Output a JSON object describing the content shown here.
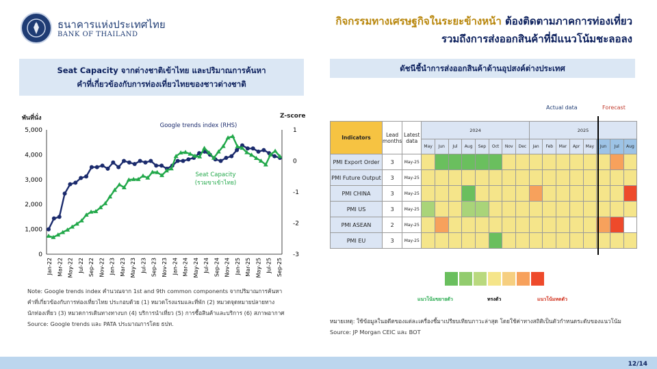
{
  "header": {
    "bank_name_th": "ธนาคารแห่งประเทศไทย",
    "bank_name_en": "BANK OF THAILAND",
    "headline_line1_a": "กิจกรรมทางเศรษฐกิจในระยะข้างหน้า",
    "headline_line1_b": " ต้องติดตามภาคการท่องเที่ยว",
    "headline_line2": "รวมถึงการส่งออกสินค้าที่มีแนวโน้มชะลอลง"
  },
  "left_panel": {
    "title_line1": "Seat Capacity จากต่างชาติเข้าไทย และปริมาณการค้นหา",
    "title_line2": "คำที่เกี่ยวข้องกับการท่องเที่ยวไทยของชาวต่างชาติ",
    "note_line1": "Note: Google trends index คำนวณจาก 1st and 9th common components จากปริมาณการค้นหา",
    "note_line2": "คำที่เกี่ยวข้องกับการท่องเที่ยวไทย ประกอบด้วย (1) หมวดโรงแรมและที่พัก (2) หมวดจุดหมายปลายทาง",
    "note_line3": "นักท่องเที่ยว (3) หมวดการเดินทางทางบก (4) บริการนำเที่ยว (5) การซื้อสินค้าและบริการ (6) สภาพอากาศ",
    "note_line4": "Source: Google trends และ PATA ประมาณการโดย ธปท."
  },
  "right_panel": {
    "title": "ดัชนีชี้นำการส่งออกสินค้าด้านอุปสงค์ต่างประเทศ",
    "actual_label": "Actual data",
    "forecast_label": "Forecast",
    "col_indicators": "Indicators",
    "col_lead_1": "Lead",
    "col_lead_2": "months",
    "col_latest_1": "Latest",
    "col_latest_2": "data",
    "year_2024": "2024",
    "year_2025": "2025",
    "months": [
      "May",
      "Jun",
      "Jul",
      "Aug",
      "Sep",
      "Oct",
      "Nov",
      "Dec",
      "Jan",
      "Feb",
      "Mar",
      "Apr",
      "May",
      "Jun",
      "Jul",
      "Aug"
    ],
    "legend_left": "แนวโน้มขยายตัว",
    "legend_mid": "ทรงตัว",
    "legend_right": "แนวโน้มหดตัว",
    "remark": "หมายเหตุ: ใช้ข้อมูลในอดีตของแต่ละเครื่องชี้มาเปรียบเทียบภาวะล่าสุด โดยใช้ค่าทางสถิติเป็นตัวกำหนดระดับของแนวโน้ม",
    "source": "Source: JP Morgan CEIC และ BOT",
    "colors": {
      "dg": "#6abf5e",
      "lg": "#a9d479",
      "ly": "#f5e58a",
      "or": "#f7a15c",
      "rd": "#ee4a2b",
      "wh": "#ffffff"
    },
    "legend_colors": [
      "#6abf5e",
      "#92cc6e",
      "#b9d97e",
      "#f5e58a",
      "#f6cf80",
      "#f7a15c",
      "#ee4a2b"
    ]
  },
  "footer": {
    "page": "12/14"
  },
  "chart_data": [
    {
      "type": "line",
      "title": "",
      "ylabel": "พันที่นั่ง",
      "y2label": "Z-score",
      "ylim": [
        0,
        5000
      ],
      "y2lim": [
        -3,
        1
      ],
      "yticks": [
        "0",
        "1,000",
        "2,000",
        "3,000",
        "4,000",
        "5,000"
      ],
      "y2ticks": [
        "-3",
        "-2",
        "-1",
        "0",
        "1"
      ],
      "xtick_labels": [
        "Jan-22",
        "Mar-22",
        "May-22",
        "Jul-22",
        "Sep-22",
        "Nov-22",
        "Jan-23",
        "Mar-23",
        "May-23",
        "Jul-23",
        "Sep-23",
        "Nov-23",
        "Jan-24",
        "Mar-24",
        "May-24",
        "Jul-24",
        "Sep-24",
        "Nov-24",
        "Jan-25",
        "Mar-25",
        "May-25",
        "Jul-25",
        "Sep-25"
      ],
      "series": [
        {
          "name": "Google trends index (RHS)",
          "axis": "right",
          "color": "#1a2a6c",
          "values": [
            -2.2,
            -1.85,
            -1.8,
            -1.05,
            -0.75,
            -0.7,
            -0.55,
            -0.5,
            -0.2,
            -0.2,
            -0.15,
            -0.25,
            -0.05,
            -0.2,
            0.0,
            -0.05,
            -0.1,
            0.0,
            -0.05,
            0.0,
            -0.15,
            -0.15,
            -0.25,
            -0.15,
            0.0,
            0.0,
            0.05,
            0.1,
            0.25,
            0.3,
            0.2,
            0.05,
            0.0,
            0.1,
            0.15,
            0.35,
            0.5,
            0.4,
            0.4,
            0.3,
            0.35,
            0.25,
            0.15,
            0.1
          ]
        },
        {
          "name": "Seat Capacity (รวมขาเข้าไทย)",
          "axis": "left",
          "color": "#22a84a",
          "values": [
            730,
            680,
            780,
            880,
            980,
            1100,
            1220,
            1350,
            1580,
            1700,
            1720,
            1880,
            2040,
            2310,
            2580,
            2800,
            2680,
            2990,
            3010,
            3010,
            3150,
            3070,
            3300,
            3290,
            3170,
            3360,
            3440,
            3940,
            4080,
            4100,
            4030,
            3950,
            3920,
            4260,
            4080,
            3870,
            4120,
            4340,
            4680,
            4740,
            4330,
            4270,
            4090,
            3990,
            3860,
            3750,
            3600,
            4000,
            4150,
            3930
          ]
        }
      ]
    }
  ],
  "heatmap_rows": [
    {
      "label": "PMI Export Order",
      "lead": "3",
      "latest": "May-25",
      "cells": [
        "ly",
        "dg",
        "dg",
        "dg",
        "dg",
        "dg",
        "ly",
        "ly",
        "ly",
        "ly",
        "ly",
        "ly",
        "ly",
        "ly",
        "or",
        "ly"
      ]
    },
    {
      "label": "PMI Future Output",
      "lead": "3",
      "latest": "May-25",
      "cells": [
        "ly",
        "ly",
        "ly",
        "ly",
        "ly",
        "ly",
        "ly",
        "ly",
        "ly",
        "ly",
        "ly",
        "ly",
        "ly",
        "ly",
        "ly",
        "ly"
      ]
    },
    {
      "label": "PMI CHINA",
      "lead": "3",
      "latest": "May-25",
      "cells": [
        "ly",
        "ly",
        "ly",
        "dg",
        "ly",
        "ly",
        "ly",
        "ly",
        "or",
        "ly",
        "ly",
        "ly",
        "ly",
        "ly",
        "ly",
        "rd"
      ]
    },
    {
      "label": "PMI US",
      "lead": "3",
      "latest": "May-25",
      "cells": [
        "lg",
        "ly",
        "ly",
        "lg",
        "lg",
        "ly",
        "ly",
        "ly",
        "ly",
        "ly",
        "ly",
        "ly",
        "ly",
        "ly",
        "ly",
        "ly"
      ]
    },
    {
      "label": "PMI ASEAN",
      "lead": "2",
      "latest": "May-25",
      "cells": [
        "ly",
        "or",
        "ly",
        "ly",
        "ly",
        "ly",
        "ly",
        "ly",
        "ly",
        "ly",
        "ly",
        "ly",
        "ly",
        "or",
        "rd",
        "wh"
      ]
    },
    {
      "label": "PMI EU",
      "lead": "3",
      "latest": "May-25",
      "cells": [
        "ly",
        "ly",
        "ly",
        "ly",
        "ly",
        "dg",
        "ly",
        "ly",
        "ly",
        "ly",
        "ly",
        "ly",
        "ly",
        "ly",
        "ly",
        "ly"
      ]
    }
  ]
}
